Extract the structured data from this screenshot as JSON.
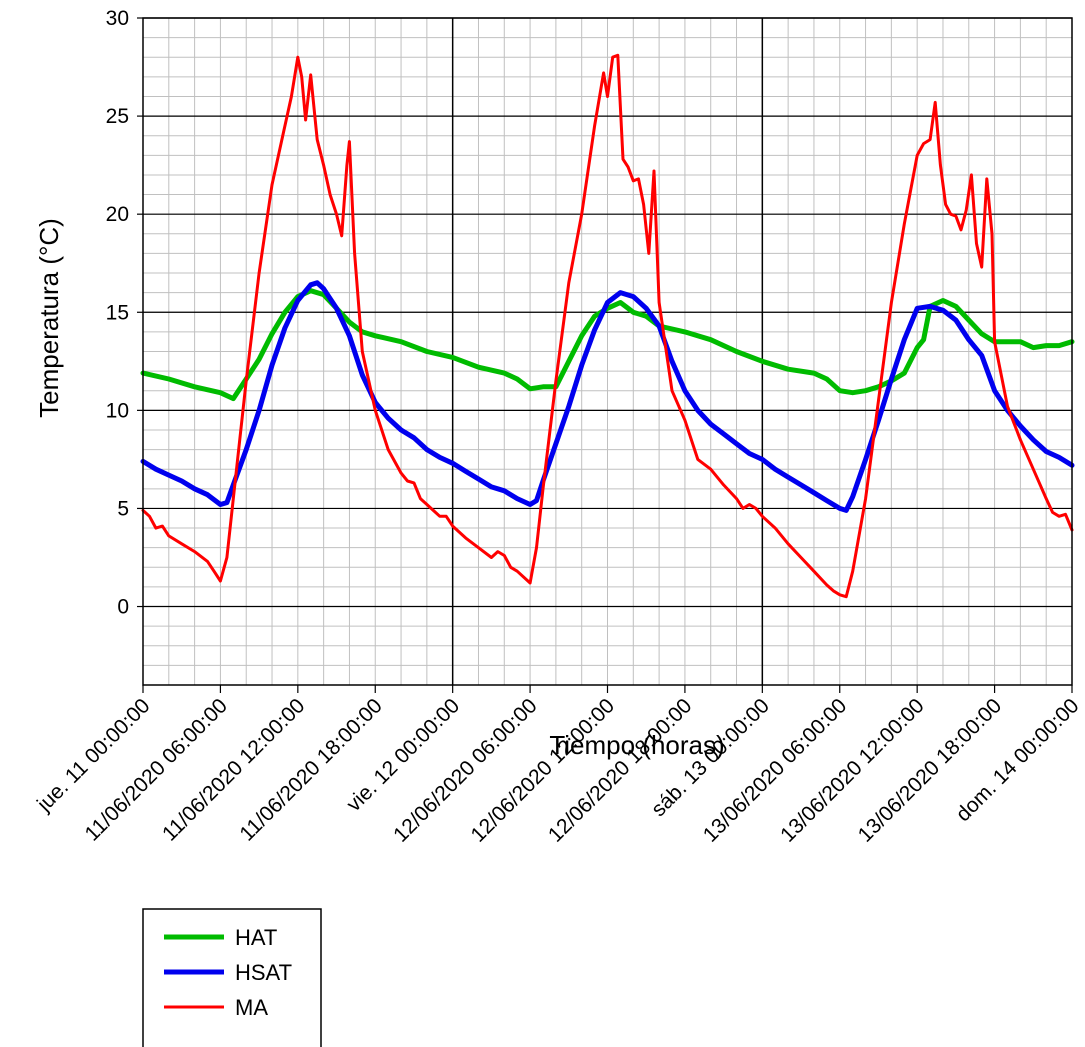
{
  "chart_data": {
    "type": "line",
    "title": "",
    "xlabel": "Tiempo (horas)",
    "ylabel": "Temperatura (°C)",
    "xlim": [
      0,
      72
    ],
    "ylim": [
      -4,
      30
    ],
    "y_ticks": [
      0,
      5,
      10,
      15,
      20,
      25,
      30
    ],
    "x_ticks": [
      {
        "x": 0,
        "label": "jue. 11 00:00:00"
      },
      {
        "x": 6,
        "label": "11/06/2020 06:00:00"
      },
      {
        "x": 12,
        "label": "11/06/2020 12:00:00"
      },
      {
        "x": 18,
        "label": "11/06/2020 18:00:00"
      },
      {
        "x": 24,
        "label": "vie. 12 00:00:00"
      },
      {
        "x": 30,
        "label": "12/06/2020 06:00:00"
      },
      {
        "x": 36,
        "label": "12/06/2020 12:00:00"
      },
      {
        "x": 42,
        "label": "12/06/2020 18:00:00"
      },
      {
        "x": 48,
        "label": "sáb. 13 00:00:00"
      },
      {
        "x": 54,
        "label": "13/06/2020 06:00:00"
      },
      {
        "x": 60,
        "label": "13/06/2020 12:00:00"
      },
      {
        "x": 66,
        "label": "13/06/2020 18:00:00"
      },
      {
        "x": 72,
        "label": "dom. 14 00:00:00"
      }
    ],
    "grid": {
      "major_x_every": 24,
      "minor_x_every": 2,
      "major_y_every": 5,
      "minor_y_every": 1
    },
    "legend": {
      "position": "bottom-left"
    },
    "series": [
      {
        "name": "HAT",
        "color": "#00bb00",
        "width": 5,
        "points": [
          [
            0,
            11.9
          ],
          [
            2,
            11.6
          ],
          [
            4,
            11.2
          ],
          [
            6,
            10.9
          ],
          [
            7,
            10.6
          ],
          [
            8,
            11.6
          ],
          [
            9,
            12.6
          ],
          [
            10,
            13.9
          ],
          [
            11,
            15.0
          ],
          [
            12,
            15.8
          ],
          [
            13,
            16.1
          ],
          [
            14,
            15.9
          ],
          [
            15,
            15.2
          ],
          [
            16,
            14.5
          ],
          [
            17,
            14.0
          ],
          [
            18,
            13.8
          ],
          [
            20,
            13.5
          ],
          [
            22,
            13.0
          ],
          [
            24,
            12.7
          ],
          [
            26,
            12.2
          ],
          [
            28,
            11.9
          ],
          [
            29,
            11.6
          ],
          [
            30,
            11.1
          ],
          [
            31,
            11.2
          ],
          [
            32,
            11.2
          ],
          [
            33,
            12.5
          ],
          [
            34,
            13.8
          ],
          [
            35,
            14.8
          ],
          [
            36,
            15.2
          ],
          [
            37,
            15.5
          ],
          [
            38,
            15.0
          ],
          [
            39,
            14.8
          ],
          [
            40,
            14.3
          ],
          [
            42,
            14.0
          ],
          [
            44,
            13.6
          ],
          [
            46,
            13.0
          ],
          [
            48,
            12.5
          ],
          [
            50,
            12.1
          ],
          [
            52,
            11.9
          ],
          [
            53,
            11.6
          ],
          [
            54,
            11.0
          ],
          [
            55,
            10.9
          ],
          [
            56,
            11.0
          ],
          [
            57,
            11.2
          ],
          [
            58,
            11.5
          ],
          [
            59,
            11.9
          ],
          [
            60,
            13.2
          ],
          [
            60.5,
            13.6
          ],
          [
            61,
            15.3
          ],
          [
            62,
            15.6
          ],
          [
            63,
            15.3
          ],
          [
            64,
            14.6
          ],
          [
            65,
            13.9
          ],
          [
            66,
            13.5
          ],
          [
            68,
            13.5
          ],
          [
            69,
            13.2
          ],
          [
            70,
            13.3
          ],
          [
            71,
            13.3
          ],
          [
            72,
            13.5
          ]
        ]
      },
      {
        "name": "HSAT",
        "color": "#0000ee",
        "width": 5,
        "points": [
          [
            0,
            7.4
          ],
          [
            1,
            7.0
          ],
          [
            2,
            6.7
          ],
          [
            3,
            6.4
          ],
          [
            4,
            6.0
          ],
          [
            5,
            5.7
          ],
          [
            6,
            5.2
          ],
          [
            6.5,
            5.3
          ],
          [
            7,
            6.2
          ],
          [
            8,
            8.0
          ],
          [
            9,
            10.0
          ],
          [
            10,
            12.3
          ],
          [
            11,
            14.2
          ],
          [
            12,
            15.6
          ],
          [
            13,
            16.4
          ],
          [
            13.5,
            16.5
          ],
          [
            14,
            16.2
          ],
          [
            15,
            15.2
          ],
          [
            16,
            13.8
          ],
          [
            17,
            11.8
          ],
          [
            18,
            10.4
          ],
          [
            19,
            9.6
          ],
          [
            20,
            9.0
          ],
          [
            21,
            8.6
          ],
          [
            22,
            8.0
          ],
          [
            23,
            7.6
          ],
          [
            24,
            7.3
          ],
          [
            25,
            6.9
          ],
          [
            26,
            6.5
          ],
          [
            27,
            6.1
          ],
          [
            28,
            5.9
          ],
          [
            29,
            5.5
          ],
          [
            30,
            5.2
          ],
          [
            30.5,
            5.4
          ],
          [
            31,
            6.4
          ],
          [
            32,
            8.3
          ],
          [
            33,
            10.2
          ],
          [
            34,
            12.3
          ],
          [
            35,
            14.1
          ],
          [
            36,
            15.5
          ],
          [
            37,
            16.0
          ],
          [
            38,
            15.8
          ],
          [
            39,
            15.2
          ],
          [
            40,
            14.3
          ],
          [
            41,
            12.5
          ],
          [
            42,
            11.0
          ],
          [
            43,
            10.0
          ],
          [
            44,
            9.3
          ],
          [
            45,
            8.8
          ],
          [
            46,
            8.3
          ],
          [
            47,
            7.8
          ],
          [
            48,
            7.5
          ],
          [
            49,
            7.0
          ],
          [
            50,
            6.6
          ],
          [
            51,
            6.2
          ],
          [
            52,
            5.8
          ],
          [
            53,
            5.4
          ],
          [
            54,
            5.0
          ],
          [
            54.5,
            4.9
          ],
          [
            55,
            5.6
          ],
          [
            56,
            7.5
          ],
          [
            57,
            9.5
          ],
          [
            58,
            11.6
          ],
          [
            59,
            13.6
          ],
          [
            60,
            15.2
          ],
          [
            61,
            15.3
          ],
          [
            62,
            15.1
          ],
          [
            63,
            14.6
          ],
          [
            64,
            13.6
          ],
          [
            65,
            12.8
          ],
          [
            66,
            11.0
          ],
          [
            67,
            10.0
          ],
          [
            68,
            9.2
          ],
          [
            69,
            8.5
          ],
          [
            70,
            7.9
          ],
          [
            71,
            7.6
          ],
          [
            72,
            7.2
          ]
        ]
      },
      {
        "name": "MA",
        "color": "#ff0000",
        "width": 3,
        "points": [
          [
            0,
            4.9
          ],
          [
            0.5,
            4.6
          ],
          [
            1,
            4.0
          ],
          [
            1.5,
            4.1
          ],
          [
            2,
            3.6
          ],
          [
            3,
            3.2
          ],
          [
            4,
            2.8
          ],
          [
            5,
            2.3
          ],
          [
            5.5,
            1.8
          ],
          [
            6,
            1.3
          ],
          [
            6.5,
            2.5
          ],
          [
            7,
            5.5
          ],
          [
            8,
            11.5
          ],
          [
            9,
            17.0
          ],
          [
            10,
            21.5
          ],
          [
            11,
            24.5
          ],
          [
            11.5,
            26.0
          ],
          [
            12,
            28.0
          ],
          [
            12.3,
            27.0
          ],
          [
            12.6,
            24.8
          ],
          [
            13,
            27.1
          ],
          [
            13.5,
            23.8
          ],
          [
            14,
            22.5
          ],
          [
            14.5,
            21.0
          ],
          [
            15,
            20.0
          ],
          [
            15.4,
            18.9
          ],
          [
            15.8,
            22.5
          ],
          [
            16,
            23.7
          ],
          [
            16.4,
            18.0
          ],
          [
            17,
            13.0
          ],
          [
            18,
            10.0
          ],
          [
            19,
            8.0
          ],
          [
            20,
            6.8
          ],
          [
            20.5,
            6.4
          ],
          [
            21,
            6.3
          ],
          [
            21.5,
            5.5
          ],
          [
            22,
            5.2
          ],
          [
            22.5,
            4.9
          ],
          [
            23,
            4.6
          ],
          [
            23.5,
            4.6
          ],
          [
            24,
            4.1
          ],
          [
            25,
            3.5
          ],
          [
            26,
            3.0
          ],
          [
            27,
            2.5
          ],
          [
            27.5,
            2.8
          ],
          [
            28,
            2.6
          ],
          [
            28.5,
            2.0
          ],
          [
            29,
            1.8
          ],
          [
            30,
            1.2
          ],
          [
            30.5,
            3.0
          ],
          [
            31,
            6.0
          ],
          [
            32,
            11.5
          ],
          [
            33,
            16.5
          ],
          [
            34,
            20.0
          ],
          [
            35,
            24.5
          ],
          [
            35.7,
            27.2
          ],
          [
            36,
            26.0
          ],
          [
            36.4,
            28.0
          ],
          [
            36.8,
            28.1
          ],
          [
            37.2,
            22.8
          ],
          [
            37.6,
            22.4
          ],
          [
            38,
            21.7
          ],
          [
            38.4,
            21.8
          ],
          [
            38.8,
            20.5
          ],
          [
            39.2,
            18.0
          ],
          [
            39.6,
            22.2
          ],
          [
            40,
            15.5
          ],
          [
            41,
            11.0
          ],
          [
            42,
            9.5
          ],
          [
            43,
            7.5
          ],
          [
            44,
            7.0
          ],
          [
            45,
            6.2
          ],
          [
            46,
            5.5
          ],
          [
            46.5,
            5.0
          ],
          [
            47,
            5.2
          ],
          [
            47.5,
            5.0
          ],
          [
            48,
            4.6
          ],
          [
            49,
            4.0
          ],
          [
            50,
            3.2
          ],
          [
            51,
            2.5
          ],
          [
            52,
            1.8
          ],
          [
            53,
            1.1
          ],
          [
            53.5,
            0.8
          ],
          [
            54,
            0.6
          ],
          [
            54.5,
            0.5
          ],
          [
            55,
            1.8
          ],
          [
            56,
            5.5
          ],
          [
            57,
            10.5
          ],
          [
            58,
            15.5
          ],
          [
            59,
            19.5
          ],
          [
            60,
            23.0
          ],
          [
            60.5,
            23.6
          ],
          [
            61,
            23.8
          ],
          [
            61.4,
            25.7
          ],
          [
            61.8,
            22.5
          ],
          [
            62.2,
            20.5
          ],
          [
            62.6,
            20.0
          ],
          [
            63,
            19.9
          ],
          [
            63.4,
            19.2
          ],
          [
            63.8,
            20.2
          ],
          [
            64.2,
            22.0
          ],
          [
            64.6,
            18.5
          ],
          [
            65,
            17.3
          ],
          [
            65.4,
            21.8
          ],
          [
            65.8,
            19.0
          ],
          [
            66,
            13.5
          ],
          [
            67,
            10.2
          ],
          [
            68,
            8.5
          ],
          [
            69,
            7.0
          ],
          [
            70,
            5.5
          ],
          [
            70.5,
            4.8
          ],
          [
            71,
            4.6
          ],
          [
            71.5,
            4.7
          ],
          [
            72,
            3.9
          ]
        ]
      }
    ]
  }
}
